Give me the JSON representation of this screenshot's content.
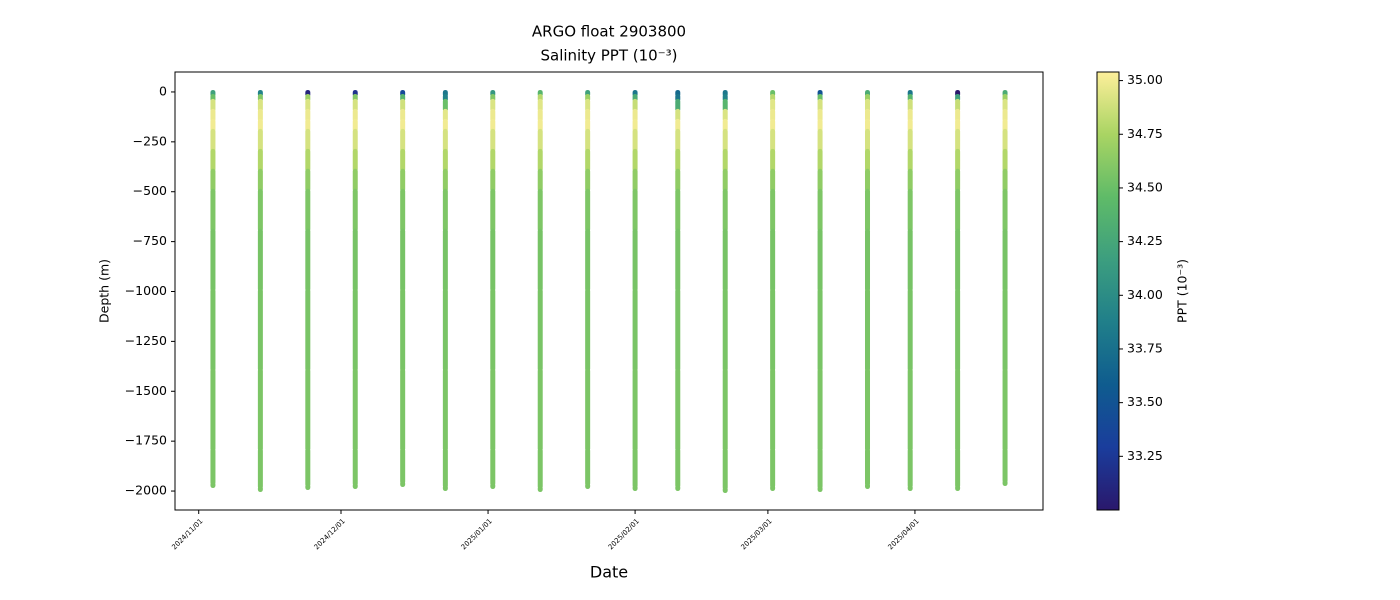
{
  "chart_data": {
    "type": "scatter",
    "title": "ARGO float 2903800",
    "subtitle": "Salinity PPT (10⁻³)",
    "x_label": "Date",
    "y_label": "Depth (m)",
    "colorbar_label": "PPT (10⁻³)",
    "xlim": [
      "2024/10/27",
      "2025/04/28"
    ],
    "xticks": [
      "2024/11/01",
      "2024/12/01",
      "2025/01/01",
      "2025/02/01",
      "2025/03/01",
      "2025/04/01"
    ],
    "ylim": [
      -2095,
      100
    ],
    "yticks": [
      0,
      {
        "value": -250,
        "label": "−250"
      },
      {
        "value": -500,
        "label": "−500"
      },
      {
        "value": -750,
        "label": "−750"
      },
      {
        "value": -1000,
        "label": "−1000"
      },
      {
        "value": -1250,
        "label": "−1250"
      },
      {
        "value": -1500,
        "label": "−1500"
      },
      {
        "value": -1750,
        "label": "−1750"
      },
      {
        "value": -2000,
        "label": "−2000"
      }
    ],
    "clim": [
      33.0,
      35.04
    ],
    "cticks": [
      33.25,
      {
        "value": 33.5,
        "label": "33.50"
      },
      33.75,
      {
        "value": 34,
        "label": "34.00"
      },
      34.25,
      {
        "value": 34.5,
        "label": "34.50"
      },
      34.75,
      {
        "value": 35,
        "label": "35.00"
      }
    ],
    "colormap": [
      "#2a186c",
      "#1a3d9c",
      "#0f5c8f",
      "#207f8a",
      "#3c9e7f",
      "#5fbb68",
      "#a9d463",
      "#fdef9a"
    ],
    "profiles": [
      {
        "date": "2024/11/04",
        "depth": [
          -5,
          -25,
          -50,
          -100,
          -150,
          -200,
          -300,
          -400,
          -500,
          -700,
          -1000,
          -1400,
          -1800,
          -1970
        ],
        "salinity": [
          34.2,
          34.5,
          34.9,
          34.98,
          35.0,
          34.9,
          34.78,
          34.65,
          34.58,
          34.55,
          34.56,
          34.57,
          34.57,
          34.57
        ]
      },
      {
        "date": "2024/11/14",
        "depth": [
          -5,
          -25,
          -50,
          -100,
          -150,
          -200,
          -300,
          -400,
          -500,
          -700,
          -1000,
          -1400,
          -1800,
          -1990
        ],
        "salinity": [
          33.9,
          34.6,
          34.92,
          34.98,
          35.0,
          34.9,
          34.78,
          34.65,
          34.58,
          34.55,
          34.56,
          34.57,
          34.57,
          34.57
        ]
      },
      {
        "date": "2024/11/24",
        "depth": [
          -5,
          -25,
          -50,
          -100,
          -150,
          -200,
          -300,
          -400,
          -500,
          -700,
          -1000,
          -1400,
          -1800,
          -1980
        ],
        "salinity": [
          33.1,
          34.7,
          34.92,
          34.98,
          35.0,
          34.9,
          34.78,
          34.65,
          34.58,
          34.55,
          34.56,
          34.57,
          34.57,
          34.57
        ]
      },
      {
        "date": "2024/12/04",
        "depth": [
          -5,
          -25,
          -50,
          -100,
          -150,
          -200,
          -300,
          -400,
          -500,
          -700,
          -1000,
          -1400,
          -1800,
          -1975
        ],
        "salinity": [
          33.2,
          34.6,
          34.9,
          34.98,
          35.0,
          34.9,
          34.78,
          34.65,
          34.58,
          34.55,
          34.56,
          34.57,
          34.57,
          34.57
        ]
      },
      {
        "date": "2024/12/14",
        "depth": [
          -5,
          -25,
          -50,
          -100,
          -150,
          -200,
          -300,
          -400,
          -500,
          -700,
          -1000,
          -1400,
          -1800,
          -1965
        ],
        "salinity": [
          33.4,
          34.4,
          34.88,
          34.98,
          35.0,
          34.9,
          34.78,
          34.65,
          34.58,
          34.55,
          34.56,
          34.57,
          34.57,
          34.57
        ]
      },
      {
        "date": "2024/12/23",
        "depth": [
          -5,
          -25,
          -50,
          -100,
          -150,
          -200,
          -300,
          -400,
          -500,
          -700,
          -1000,
          -1400,
          -1800,
          -1985
        ],
        "salinity": [
          33.8,
          33.9,
          34.5,
          34.95,
          35.0,
          34.9,
          34.78,
          34.65,
          34.58,
          34.55,
          34.56,
          34.57,
          34.57,
          34.57
        ]
      },
      {
        "date": "2025/01/02",
        "depth": [
          -5,
          -25,
          -50,
          -100,
          -150,
          -200,
          -300,
          -400,
          -500,
          -700,
          -1000,
          -1400,
          -1800,
          -1975
        ],
        "salinity": [
          34.1,
          34.6,
          34.92,
          34.98,
          35.0,
          34.9,
          34.78,
          34.65,
          34.58,
          34.55,
          34.56,
          34.57,
          34.57,
          34.57
        ]
      },
      {
        "date": "2025/01/12",
        "depth": [
          -5,
          -25,
          -50,
          -100,
          -150,
          -200,
          -300,
          -400,
          -500,
          -700,
          -1000,
          -1400,
          -1800,
          -1990
        ],
        "salinity": [
          34.4,
          34.8,
          34.94,
          34.98,
          35.0,
          34.9,
          34.78,
          34.65,
          34.58,
          34.55,
          34.56,
          34.57,
          34.57,
          34.57
        ]
      },
      {
        "date": "2025/01/22",
        "depth": [
          -5,
          -25,
          -50,
          -100,
          -150,
          -200,
          -300,
          -400,
          -500,
          -700,
          -1000,
          -1400,
          -1800,
          -1975
        ],
        "salinity": [
          34.2,
          34.7,
          34.92,
          34.98,
          35.0,
          34.9,
          34.78,
          34.65,
          34.58,
          34.55,
          34.56,
          34.57,
          34.57,
          34.57
        ]
      },
      {
        "date": "2025/02/01",
        "depth": [
          -5,
          -25,
          -50,
          -100,
          -150,
          -200,
          -300,
          -400,
          -500,
          -700,
          -1000,
          -1400,
          -1800,
          -1985
        ],
        "salinity": [
          33.8,
          34.3,
          34.85,
          34.98,
          35.0,
          34.9,
          34.78,
          34.65,
          34.58,
          34.55,
          34.56,
          34.57,
          34.57,
          34.57
        ]
      },
      {
        "date": "2025/02/10",
        "depth": [
          -5,
          -25,
          -50,
          -100,
          -150,
          -200,
          -300,
          -400,
          -500,
          -700,
          -1000,
          -1400,
          -1800,
          -1985
        ],
        "salinity": [
          33.7,
          33.8,
          34.3,
          34.9,
          35.0,
          34.9,
          34.78,
          34.65,
          34.58,
          34.55,
          34.56,
          34.57,
          34.57,
          34.57
        ]
      },
      {
        "date": "2025/02/20",
        "depth": [
          -5,
          -25,
          -50,
          -100,
          -150,
          -200,
          -300,
          -400,
          -500,
          -700,
          -1000,
          -1400,
          -1800,
          -1995
        ],
        "salinity": [
          33.8,
          33.9,
          34.4,
          34.92,
          35.0,
          34.9,
          34.78,
          34.65,
          34.58,
          34.55,
          34.56,
          34.57,
          34.57,
          34.57
        ]
      },
      {
        "date": "2025/03/02",
        "depth": [
          -5,
          -25,
          -50,
          -100,
          -150,
          -200,
          -300,
          -400,
          -500,
          -700,
          -1000,
          -1400,
          -1800,
          -1985
        ],
        "salinity": [
          34.5,
          34.8,
          34.94,
          34.98,
          35.0,
          34.9,
          34.78,
          34.65,
          34.58,
          34.55,
          34.56,
          34.57,
          34.57,
          34.57
        ]
      },
      {
        "date": "2025/03/12",
        "depth": [
          -5,
          -25,
          -50,
          -100,
          -150,
          -200,
          -300,
          -400,
          -500,
          -700,
          -1000,
          -1400,
          -1800,
          -1990
        ],
        "salinity": [
          33.5,
          34.5,
          34.9,
          34.98,
          35.0,
          34.9,
          34.78,
          34.65,
          34.58,
          34.55,
          34.56,
          34.57,
          34.57,
          34.57
        ]
      },
      {
        "date": "2025/03/22",
        "depth": [
          -5,
          -25,
          -50,
          -100,
          -150,
          -200,
          -300,
          -400,
          -500,
          -700,
          -1000,
          -1400,
          -1800,
          -1975
        ],
        "salinity": [
          34.3,
          34.7,
          34.92,
          34.98,
          35.0,
          34.9,
          34.78,
          34.65,
          34.58,
          34.55,
          34.56,
          34.57,
          34.57,
          34.57
        ]
      },
      {
        "date": "2025/03/31",
        "depth": [
          -5,
          -25,
          -50,
          -100,
          -150,
          -200,
          -300,
          -400,
          -500,
          -700,
          -1000,
          -1400,
          -1800,
          -1985
        ],
        "salinity": [
          33.8,
          34.4,
          34.88,
          34.98,
          35.0,
          34.9,
          34.78,
          34.65,
          34.58,
          34.55,
          34.56,
          34.57,
          34.57,
          34.57
        ]
      },
      {
        "date": "2025/04/10",
        "depth": [
          -5,
          -25,
          -50,
          -100,
          -150,
          -200,
          -300,
          -400,
          -500,
          -700,
          -1000,
          -1400,
          -1800,
          -1985
        ],
        "salinity": [
          33.0,
          34.2,
          34.85,
          34.98,
          35.0,
          34.9,
          34.78,
          34.65,
          34.58,
          34.55,
          34.56,
          34.57,
          34.57,
          34.57
        ]
      },
      {
        "date": "2025/04/20",
        "depth": [
          -5,
          -25,
          -50,
          -100,
          -150,
          -200,
          -300,
          -400,
          -500,
          -700,
          -1000,
          -1400,
          -1800,
          -1960
        ],
        "salinity": [
          34.3,
          34.7,
          34.92,
          34.98,
          35.0,
          34.9,
          34.78,
          34.65,
          34.58,
          34.55,
          34.56,
          34.57,
          34.57,
          34.57
        ]
      }
    ]
  }
}
